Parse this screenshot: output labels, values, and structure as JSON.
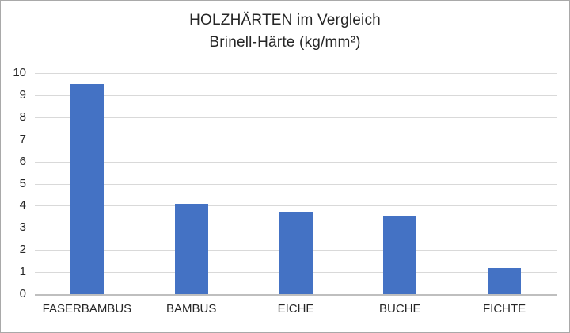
{
  "chart_data": {
    "type": "bar",
    "title": "HOLZHÄRTEN im Vergleich",
    "subtitle": "Brinell-Härte (kg/mm²)",
    "categories": [
      "FASERBAMBUS",
      "BAMBUS",
      "EICHE",
      "BUCHE",
      "FICHTE"
    ],
    "values": [
      9.5,
      4.1,
      3.7,
      3.55,
      1.2
    ],
    "xlabel": "",
    "ylabel": "",
    "ylim": [
      0,
      10
    ],
    "yticks": [
      0,
      1,
      2,
      3,
      4,
      5,
      6,
      7,
      8,
      9,
      10
    ],
    "grid": true,
    "legend": "none",
    "bar_color": "#4472c4",
    "gridline_color": "#d9d9d9",
    "axis_line_color": "#bfbfbf",
    "text_color": "#262626"
  }
}
